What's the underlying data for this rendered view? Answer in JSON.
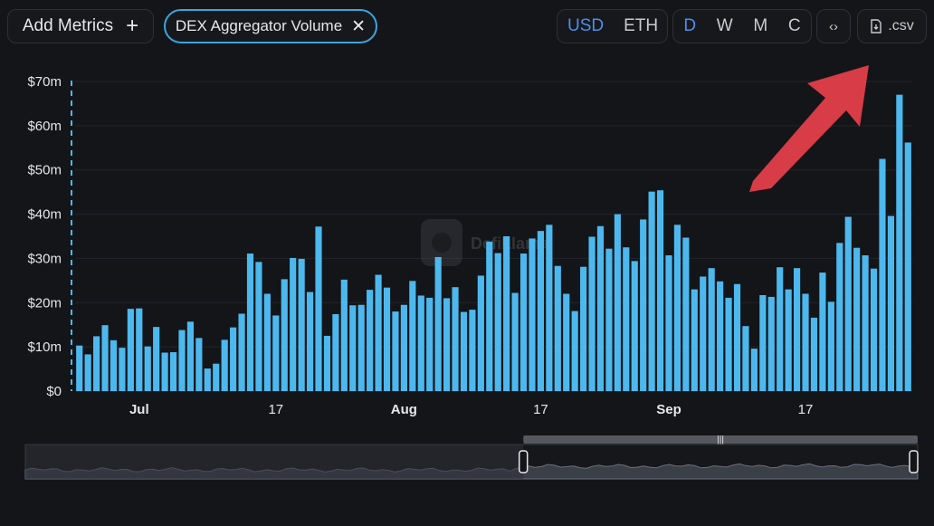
{
  "toolbar": {
    "add_metrics_label": "Add Metrics",
    "metric_chip_label": "DEX Aggregator Volume",
    "currency_options": [
      "USD",
      "ETH"
    ],
    "currency_selected": "USD",
    "period_options": [
      "D",
      "W",
      "M",
      "C"
    ],
    "period_selected": "D",
    "csv_label": ".csv"
  },
  "watermark": "DefiLlama",
  "colors": {
    "bar": "#4cb8ee",
    "accent": "#3aa5e0",
    "active": "#4a8ef0",
    "arrow": "#e8404c",
    "background": "#141518"
  },
  "chart_data": {
    "type": "bar",
    "series_name": "DEX Aggregator Volume",
    "y_ticks": [
      "$0",
      "$10m",
      "$20m",
      "$30m",
      "$40m",
      "$50m",
      "$60m",
      "$70m"
    ],
    "ylim": [
      0,
      70
    ],
    "y_unit": "USD millions",
    "x_ticks": [
      "Jul",
      "17",
      "Aug",
      "17",
      "Sep",
      "17"
    ],
    "x_tick_index": [
      7,
      23,
      38,
      54,
      69,
      85
    ],
    "x_tick_bold": [
      true,
      false,
      true,
      false,
      true,
      false
    ],
    "values": [
      10.3,
      8.3,
      12.4,
      14.9,
      11.5,
      9.8,
      18.6,
      18.7,
      10.1,
      14.5,
      8.7,
      8.8,
      13.8,
      15.7,
      12.0,
      5.1,
      6.2,
      11.6,
      14.4,
      17.5,
      31.1,
      29.2,
      22.0,
      17.1,
      25.3,
      30.1,
      29.9,
      22.4,
      37.2,
      12.5,
      17.4,
      25.2,
      19.4,
      19.5,
      22.9,
      26.3,
      23.4,
      18.0,
      19.5,
      24.9,
      21.6,
      21.1,
      30.3,
      21.0,
      23.5,
      17.9,
      18.4,
      26.1,
      33.8,
      31.2,
      35.0,
      22.2,
      31.1,
      34.5,
      36.2,
      37.6,
      28.3,
      22.0,
      18.1,
      28.1,
      34.9,
      37.3,
      32.2,
      40.0,
      32.5,
      29.4,
      38.8,
      45.1,
      45.4,
      30.7,
      37.6,
      34.7,
      23.0,
      25.9,
      27.8,
      24.8,
      21.1,
      24.2,
      14.7,
      9.6,
      21.7,
      21.3,
      28.0,
      23.0,
      27.8,
      22.0,
      16.6,
      26.8,
      20.2,
      33.5,
      39.4,
      32.4,
      30.7,
      27.7,
      52.5,
      39.6,
      67.0,
      56.2
    ],
    "brush_selection": [
      0.558,
      1.0
    ]
  }
}
